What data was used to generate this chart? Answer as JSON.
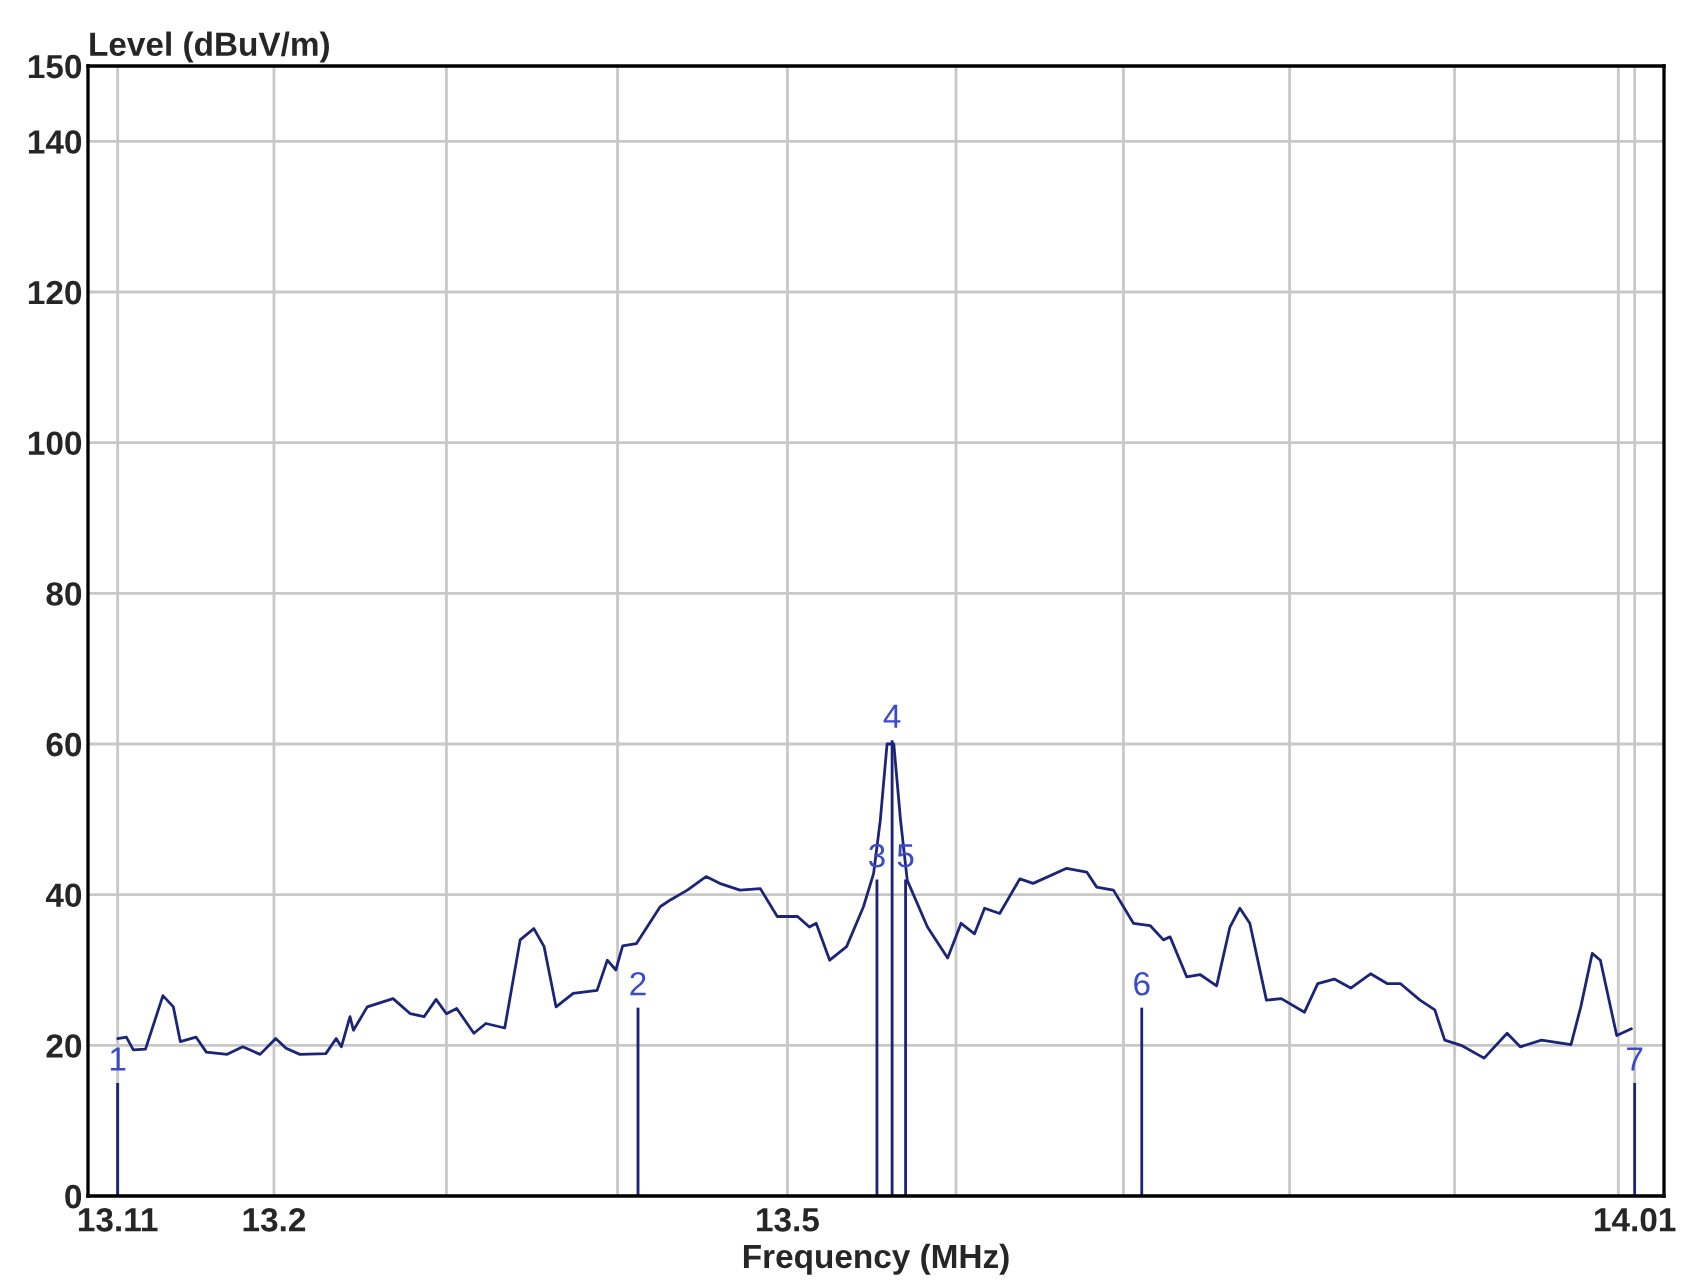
{
  "chart_data": {
    "type": "line",
    "xlabel": "Frequency (MHz)",
    "ylabel": "Level (dBuV/m)",
    "log": "x",
    "grid": true,
    "xlim": [
      13.093,
      14.028
    ],
    "ylim": [
      0,
      150
    ],
    "xticks": [
      13.11,
      13.2,
      {
        "value": 13.3,
        "label": null
      },
      {
        "value": 13.4,
        "label": null
      },
      13.5,
      {
        "value": 13.6,
        "label": null
      },
      {
        "value": 13.7,
        "label": null
      },
      {
        "value": 13.8,
        "label": null
      },
      {
        "value": 13.9,
        "label": null
      },
      {
        "value": 14.0,
        "label": null
      },
      14.01
    ],
    "yticks": [
      0,
      20,
      40,
      60,
      80,
      100,
      120,
      140,
      150
    ],
    "series": [
      {
        "color": "#1c2478",
        "x": [
          13.11,
          13.115,
          13.119,
          13.126,
          13.136,
          13.142,
          13.146,
          13.155,
          13.161,
          13.173,
          13.182,
          13.192,
          13.201,
          13.207,
          13.215,
          13.23,
          13.236,
          13.239,
          13.244,
          13.246,
          13.254,
          13.269,
          13.279,
          13.287,
          13.294,
          13.3,
          13.306,
          13.316,
          13.323,
          13.334,
          13.343,
          13.351,
          13.357,
          13.364,
          13.374,
          13.388,
          13.394,
          13.399,
          13.403,
          13.411,
          13.425,
          13.431,
          13.441,
          13.452,
          13.46,
          13.472,
          13.484,
          13.494,
          13.506,
          13.513,
          13.517,
          13.525,
          13.535,
          13.545,
          13.551,
          13.555,
          13.559,
          13.563,
          13.567,
          13.571,
          13.583,
          13.595,
          13.603,
          13.611,
          13.617,
          13.626,
          13.638,
          13.646,
          13.666,
          13.678,
          13.684,
          13.694,
          13.706,
          13.716,
          13.724,
          13.728,
          13.738,
          13.746,
          13.756,
          13.764,
          13.77,
          13.776,
          13.786,
          13.795,
          13.809,
          13.817,
          13.827,
          13.837,
          13.849,
          13.859,
          13.867,
          13.879,
          13.888,
          13.894,
          13.904,
          13.918,
          13.932,
          13.94,
          13.953,
          13.971,
          13.977,
          13.984,
          13.989,
          13.999,
          14.008
        ],
        "values": [
          20.9,
          21.1,
          19.4,
          19.5,
          26.6,
          25.1,
          20.5,
          21.1,
          19.1,
          18.8,
          19.8,
          18.8,
          20.9,
          19.6,
          18.8,
          18.9,
          20.9,
          19.8,
          23.8,
          22.0,
          25.1,
          26.2,
          24.2,
          23.8,
          26.1,
          24.2,
          24.9,
          21.6,
          22.9,
          22.3,
          34.0,
          35.5,
          33.1,
          25.1,
          26.9,
          27.3,
          31.3,
          30.0,
          33.2,
          33.5,
          38.4,
          39.3,
          40.6,
          42.4,
          41.5,
          40.6,
          40.8,
          37.1,
          37.1,
          35.7,
          36.2,
          31.3,
          33.1,
          38.4,
          42.8,
          49.9,
          60.0,
          60.0,
          49.9,
          41.9,
          35.7,
          31.6,
          36.2,
          34.8,
          38.2,
          37.5,
          42.1,
          41.5,
          43.5,
          43.0,
          41.0,
          40.6,
          36.2,
          35.9,
          34.0,
          34.4,
          29.1,
          29.4,
          27.9,
          35.7,
          38.2,
          36.2,
          26.0,
          26.2,
          24.4,
          28.2,
          28.8,
          27.6,
          29.5,
          28.2,
          28.2,
          26.0,
          24.7,
          20.7,
          20.0,
          18.3,
          21.6,
          19.8,
          20.7,
          20.1,
          25.1,
          32.2,
          31.3,
          21.3,
          22.2
        ]
      },
      {
        "type": "bar",
        "color": "#1c2478",
        "x": [
          13.11,
          13.412,
          13.553,
          13.562,
          13.57,
          13.711,
          14.01
        ],
        "values": [
          15,
          25,
          42,
          60.5,
          42,
          25,
          15
        ]
      }
    ],
    "annotations": [
      {
        "text": "1",
        "x": 13.11,
        "y": 15
      },
      {
        "text": "2",
        "x": 13.412,
        "y": 25
      },
      {
        "text": "3",
        "x": 13.553,
        "y": 42
      },
      {
        "text": "4",
        "x": 13.562,
        "y": 60.5
      },
      {
        "text": "5",
        "x": 13.57,
        "y": 42
      },
      {
        "text": "6",
        "x": 13.711,
        "y": 25
      },
      {
        "text": "7",
        "x": 14.01,
        "y": 15
      }
    ]
  }
}
